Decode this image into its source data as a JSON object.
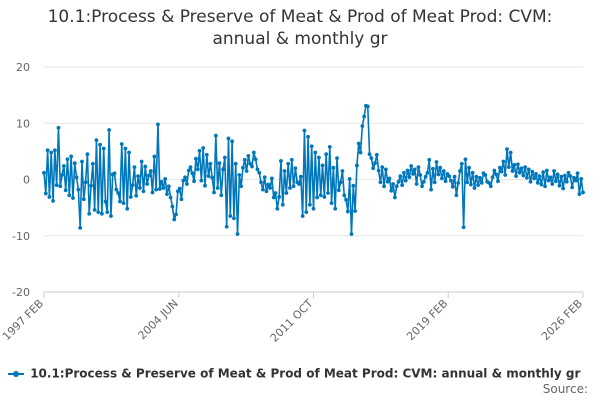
{
  "title_line1": "10.1:Process & Preserve of Meat & Prod of Meat Prod: CVM:",
  "title_line2": "annual & monthly gr",
  "legend_label": "10.1:Process & Preserve of Meat & Prod of Meat Prod: CVM: annual & monthly gr",
  "source_label": "Source:",
  "colors": {
    "series": "#0077bb",
    "grid": "#e6e6e6",
    "axis_text": "#666666"
  },
  "chart_data": {
    "type": "line",
    "xlabel": "",
    "ylabel": "",
    "ylim": [
      -20,
      20
    ],
    "yticks": [
      20,
      10,
      0,
      -10,
      -20
    ],
    "xticks": [
      "1997 FEB",
      "2004 JUN",
      "2011 OCT",
      "2019 FEB",
      "2026 FEB"
    ],
    "grid": true,
    "legend_position": "bottom",
    "series": [
      {
        "name": "10.1:Process & Preserve of Meat & Prod of Meat Prod: CVM: annual & monthly gr",
        "x_start": "1997 FEB",
        "frequency": "monthly",
        "values": [
          1.2,
          -2.5,
          5.2,
          -3.1,
          4.8,
          -3.8,
          5.2,
          -1.0,
          9.2,
          -1.2,
          0.8,
          2.4,
          -1.9,
          3.6,
          -2.8,
          4.1,
          -3.3,
          2.9,
          0.4,
          -1.8,
          -8.6,
          3.2,
          -3.5,
          -0.5,
          4.5,
          -6.1,
          -1.1,
          2.8,
          -5.4,
          7.0,
          -5.8,
          6.2,
          -6.1,
          5.5,
          -3.9,
          -5.8,
          8.8,
          -6.5,
          0.9,
          1.1,
          -1.8,
          -2.4,
          -3.9,
          6.3,
          -4.2,
          5.5,
          -5.2,
          4.8,
          -3.1,
          -1.0,
          2.2,
          -2.9,
          0.6,
          -1.5,
          3.2,
          -2.1,
          2.3,
          -0.8,
          0.7,
          1.5,
          -2.3,
          4.1,
          -1.8,
          9.8,
          -1.7,
          -0.4,
          -1.5,
          0.1,
          -2.6,
          -1.2,
          -3.2,
          -4.8,
          -7.1,
          -6.2,
          -2.1,
          -1.6,
          -3.5,
          -0.2,
          0.4,
          -0.8,
          1.6,
          2.2,
          1.1,
          -0.3,
          3.7,
          1.8,
          5.1,
          -0.2,
          5.6,
          -1.1,
          4.4,
          0.6,
          2.8,
          0.3,
          -2.3,
          7.8,
          -1.5,
          2.9,
          -2.8,
          1.8,
          3.9,
          -8.4,
          7.3,
          -6.5,
          6.8,
          -6.9,
          2.8,
          -9.7,
          0.8,
          -1.2,
          2.1,
          3.5,
          1.5,
          4.2,
          2.8,
          2.3,
          4.8,
          3.6,
          1.8,
          1.2,
          -0.5,
          -1.8,
          0.4,
          -2.1,
          -0.9,
          -1.5,
          0.2,
          -3.2,
          -2.4,
          -5.2,
          -3.1,
          3.3,
          -4.5,
          1.5,
          -2.4,
          2.8,
          -1.5,
          3.5,
          -1.2,
          2.0,
          -0.5,
          -0.8,
          0.5,
          -6.5,
          8.7,
          -5.8,
          7.6,
          -4.5,
          5.9,
          -5.2,
          4.8,
          -3.2,
          3.9,
          -2.8,
          2.5,
          -3.1,
          4.5,
          -2.4,
          5.8,
          -4.2,
          2.1,
          -5.2,
          3.8,
          -1.9,
          -0.5,
          1.5,
          -2.8,
          -3.6,
          -5.7,
          0.1,
          -9.7,
          -1.1,
          -5.6,
          2.5,
          6.4,
          4.8,
          9.5,
          11.2,
          13.1,
          13.0,
          4.5,
          3.8,
          2.0,
          2.9,
          4.4,
          1.6,
          -0.5,
          2.2,
          -1.2,
          1.8,
          -0.4,
          0.2,
          -2.0,
          -0.8,
          -3.2,
          -1.2,
          -0.4,
          0.6,
          -1.0,
          1.2,
          -0.2,
          1.6,
          0.4,
          2.4,
          1.0,
          1.8,
          -0.8,
          2.2,
          0.8,
          -1.2,
          -0.4,
          0.5,
          1.2,
          3.5,
          -1.8,
          1.9,
          -0.5,
          3.1,
          0.9,
          2.1,
          0.2,
          1.5,
          -0.3,
          1.0,
          0.6,
          -0.2,
          -1.3,
          0.5,
          -2.8,
          -0.6,
          1.5,
          2.8,
          -8.5,
          3.6,
          -0.5,
          2.1,
          -0.9,
          1.2,
          -1.5,
          0.5,
          -1.0,
          0.3,
          -0.6,
          1.1,
          0.8,
          -0.4,
          -0.6,
          -1.2,
          0.4,
          1.6,
          0.9,
          -0.3,
          2.1,
          1.4,
          3.2,
          0.8,
          5.4,
          2.2,
          4.8,
          1.5,
          2.6,
          0.6,
          2.7,
          1.2,
          2.0,
          0.7,
          2.2,
          0.3,
          1.8,
          -0.4,
          1.4,
          0.2,
          1.0,
          -0.6,
          0.6,
          -0.9,
          1.3,
          -1.2,
          1.6,
          -0.2,
          0.4,
          -0.8,
          1.5,
          -0.3,
          0.9,
          -1.1,
          0.5,
          -1.6,
          0.7,
          -0.4,
          1.2,
          0.6,
          -1.4,
          0.3,
          -0.2,
          1.1,
          -2.6,
          0.1,
          -2.3
        ]
      }
    ]
  }
}
